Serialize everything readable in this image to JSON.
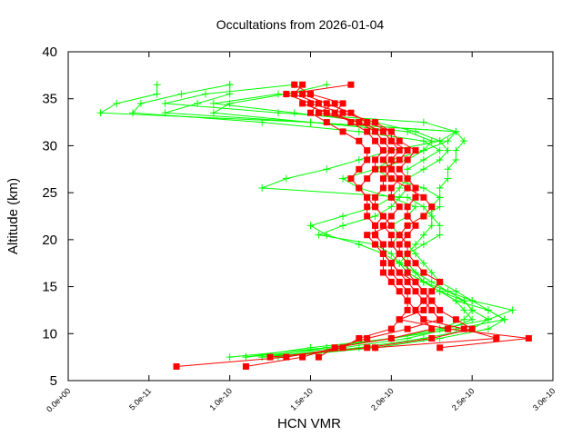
{
  "chart_data": {
    "type": "line",
    "title": "Occultations from 2026-01-04",
    "xlabel": "HCN VMR",
    "ylabel": "Altitude (km)",
    "xlim": [
      0,
      3e-10
    ],
    "ylim": [
      5,
      40
    ],
    "xticks": [
      0,
      5e-11,
      1e-10,
      1.5e-10,
      2e-10,
      2.5e-10,
      3e-10
    ],
    "xtick_labels": [
      "0.0e+00",
      "5.0e-11",
      "1.0e-10",
      "1.5e-10",
      "2.0e-10",
      "2.5e-10",
      "3.0e-10"
    ],
    "yticks": [
      5,
      10,
      15,
      20,
      25,
      30,
      35,
      40
    ],
    "ytick_labels": [
      "5",
      "10",
      "15",
      "20",
      "25",
      "30",
      "35",
      "40"
    ],
    "grid": false,
    "legend": "none",
    "colors": {
      "green_series": "#00ff00",
      "red_series": "#ff0000"
    },
    "green_group": {
      "marker": "plus",
      "altitude": [
        7.5,
        8.5,
        9.5,
        10.5,
        11.5,
        12.5,
        13.5,
        14.5,
        15.5,
        16.5,
        17.5,
        18.5,
        19.5,
        20.5,
        21.5,
        22.5,
        23.5,
        24.5,
        25.5,
        26.5,
        27.5,
        28.5,
        29.5,
        30.5,
        31.5,
        32.5,
        33.5,
        34.5,
        35.5,
        36.5
      ],
      "series_x_e-10": [
        [
          1.0,
          1.6,
          2.0,
          2.4,
          2.7,
          2.6,
          2.4,
          2.3,
          2.2,
          2.15,
          2.1,
          2.1,
          2.15,
          2.2,
          2.25,
          2.25,
          2.25,
          2.3,
          2.3,
          2.35,
          2.35,
          2.4,
          2.4,
          2.45,
          2.4,
          1.5,
          0.2,
          0.3,
          0.55,
          0.55
        ],
        [
          1.1,
          1.5,
          2.0,
          2.3,
          2.6,
          2.75,
          2.5,
          2.35,
          2.2,
          2.1,
          2.05,
          2.0,
          1.9,
          1.55,
          1.7,
          1.9,
          2.0,
          2.05,
          2.1,
          2.1,
          2.1,
          2.2,
          2.3,
          2.2,
          1.8,
          1.2,
          0.4,
          0.45,
          0.7,
          1.0
        ],
        [
          1.2,
          1.8,
          2.2,
          2.5,
          2.6,
          2.5,
          2.45,
          2.3,
          2.2,
          2.1,
          2.05,
          2.1,
          2.2,
          2.3,
          2.3,
          2.25,
          2.2,
          2.1,
          1.2,
          1.35,
          1.6,
          1.8,
          2.0,
          2.3,
          2.4,
          1.5,
          0.6,
          0.8,
          1.0,
          1.0
        ],
        [
          1.3,
          1.9,
          2.3,
          2.6,
          2.7,
          2.6,
          2.5,
          2.4,
          2.3,
          2.25,
          2.2,
          2.15,
          2.1,
          2.05,
          2.0,
          2.1,
          2.15,
          2.0,
          1.8,
          1.7,
          1.9,
          2.1,
          2.2,
          2.25,
          2.1,
          1.5,
          0.9,
          1.0,
          1.35,
          1.6
        ],
        [
          1.1,
          1.7,
          2.1,
          2.35,
          2.5,
          2.45,
          2.4,
          2.3,
          2.2,
          2.15,
          2.1,
          2.05,
          2.0,
          2.05,
          2.1,
          2.2,
          2.3,
          2.3,
          2.2,
          2.0,
          1.9,
          2.0,
          2.2,
          2.35,
          2.4,
          2.2,
          1.3,
          0.6,
          0.85,
          1.4
        ],
        [
          1.2,
          1.6,
          2.0,
          2.3,
          2.45,
          2.5,
          2.45,
          2.35,
          2.25,
          2.15,
          2.05,
          1.95,
          1.8,
          1.6,
          1.5,
          1.7,
          1.9,
          2.0,
          2.05,
          2.1,
          2.2,
          2.3,
          2.35,
          2.3,
          2.15,
          1.9,
          1.4,
          0.9,
          1.3,
          null
        ]
      ]
    },
    "red_group": {
      "marker": "square",
      "altitude": [
        6.5,
        7.5,
        8.5,
        9.5,
        10.5,
        11.5,
        12.5,
        13.5,
        14.5,
        15.5,
        16.5,
        17.5,
        18.5,
        19.5,
        20.5,
        21.5,
        22.5,
        23.5,
        24.5,
        25.5,
        26.5,
        27.5,
        28.5,
        29.5,
        30.5,
        31.5,
        32.5,
        33.5,
        34.5,
        35.5,
        36.5
      ],
      "series_x_e-10": [
        [
          0.67,
          1.35,
          1.7,
          1.8,
          2.0,
          2.05,
          2.1,
          2.1,
          2.05,
          2.0,
          1.95,
          1.95,
          1.95,
          1.95,
          1.9,
          1.9,
          1.85,
          1.85,
          1.85,
          1.8,
          1.75,
          1.8,
          1.85,
          1.85,
          1.8,
          1.7,
          1.6,
          1.5,
          1.55,
          1.4,
          1.45
        ],
        [
          1.1,
          1.45,
          1.65,
          2.0,
          2.25,
          2.2,
          2.15,
          2.1,
          2.1,
          2.05,
          2.0,
          2.0,
          1.95,
          1.95,
          1.9,
          1.9,
          1.95,
          1.9,
          1.85,
          1.8,
          1.85,
          1.9,
          1.9,
          1.95,
          1.9,
          1.85,
          1.75,
          1.65,
          1.7,
          1.5,
          1.4
        ],
        [
          null,
          1.55,
          1.65,
          1.85,
          2.1,
          2.3,
          2.25,
          2.2,
          2.15,
          2.1,
          2.05,
          2.0,
          2.05,
          2.0,
          2.0,
          1.95,
          2.0,
          2.05,
          2.0,
          2.0,
          2.05,
          2.0,
          2.0,
          2.05,
          2.0,
          2.0,
          1.85,
          1.75,
          1.6,
          1.45,
          null
        ],
        [
          null,
          1.25,
          1.85,
          2.25,
          2.5,
          2.4,
          2.3,
          2.25,
          2.2,
          2.15,
          2.1,
          2.1,
          2.05,
          2.05,
          2.1,
          2.15,
          2.1,
          2.1,
          2.15,
          2.15,
          2.1,
          2.05,
          2.1,
          2.15,
          2.05,
          2.0,
          1.9,
          1.7,
          1.5,
          1.35,
          1.75
        ],
        [
          null,
          null,
          1.9,
          2.65,
          2.45,
          2.2,
          2.15,
          2.2,
          2.25,
          2.3,
          2.2,
          2.15,
          2.1,
          2.1,
          2.05,
          2.1,
          2.2,
          2.25,
          2.2,
          2.1,
          2.0,
          1.95,
          2.05,
          2.1,
          2.0,
          1.95,
          1.8,
          1.6,
          1.45,
          null,
          null
        ],
        [
          null,
          null,
          2.3,
          2.85,
          2.35,
          2.05,
          2.2,
          2.25,
          2.2,
          2.15,
          2.05,
          2.0,
          1.95,
          1.9,
          1.85,
          2.0,
          1.95,
          1.9,
          1.9,
          1.95,
          1.95,
          2.0,
          1.95,
          2.0,
          1.95,
          1.9,
          1.8,
          1.55,
          1.65,
          null,
          null
        ]
      ]
    }
  }
}
